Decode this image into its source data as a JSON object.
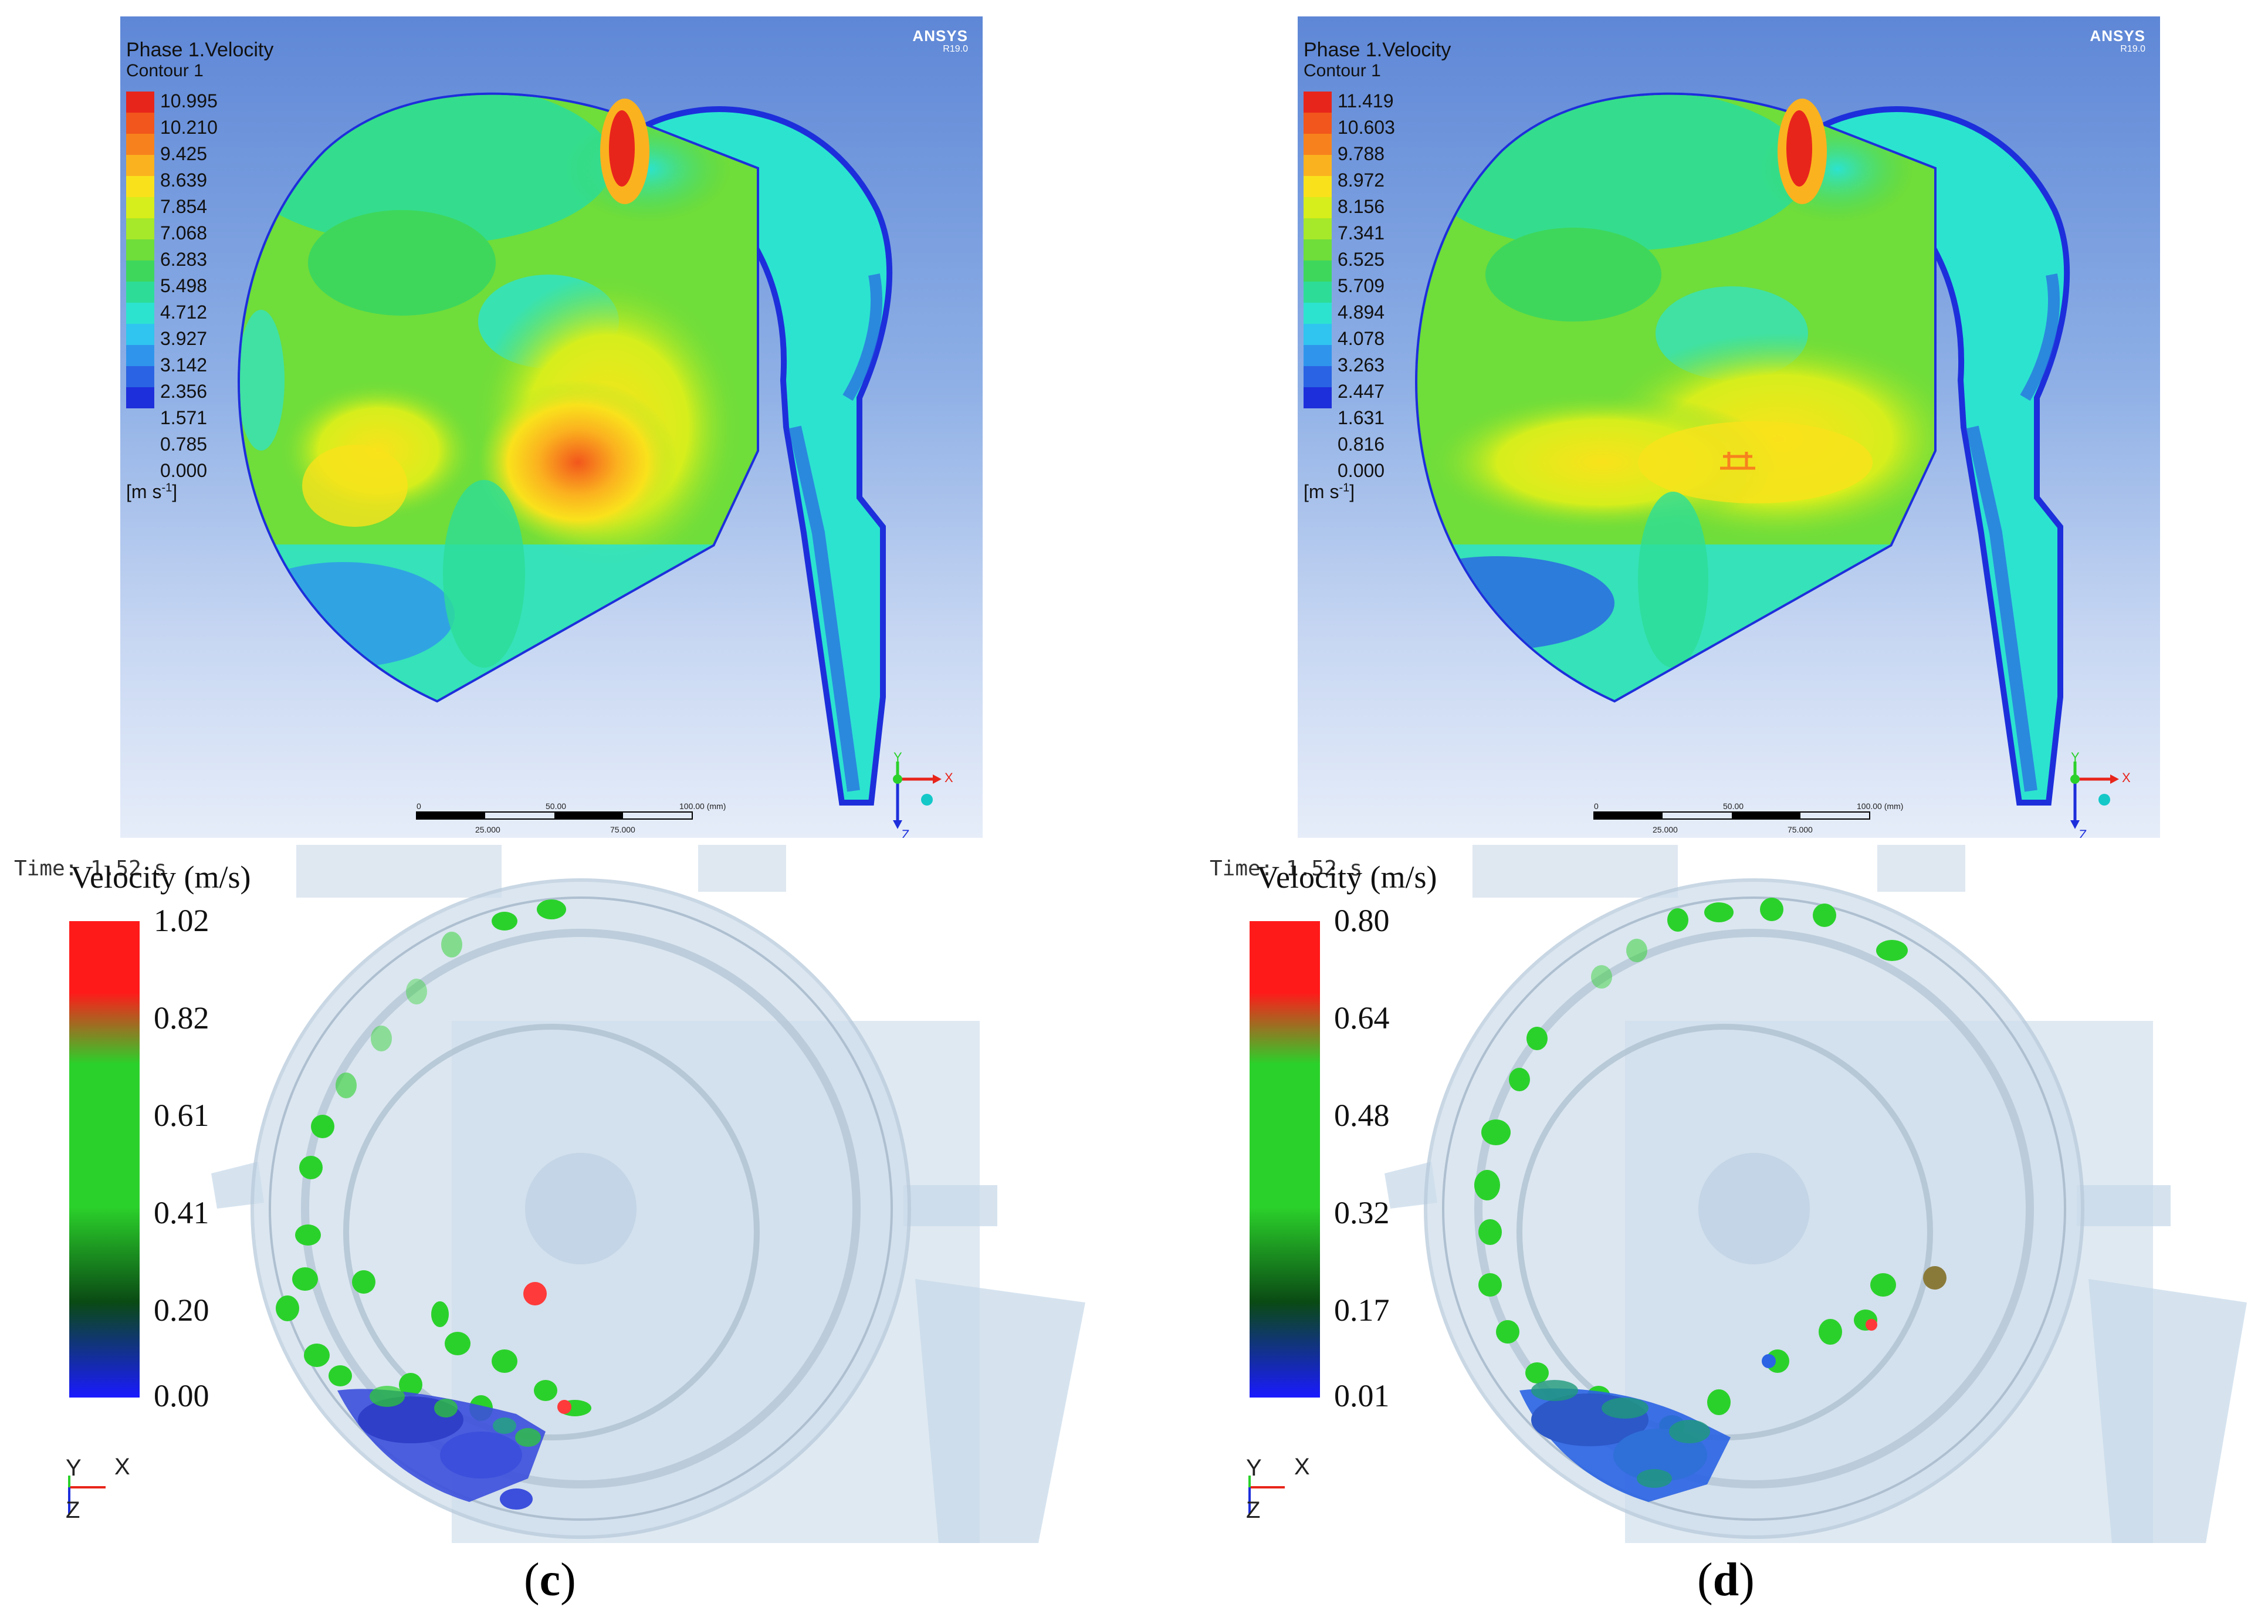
{
  "cfd": [
    {
      "title": "Phase 1.Velocity",
      "subtitle": "Contour 1",
      "legend_values": [
        "10.995",
        "10.210",
        "9.425",
        "8.639",
        "7.854",
        "7.068",
        "6.283",
        "5.498",
        "4.712",
        "3.927",
        "3.142",
        "2.356",
        "1.571",
        "0.785",
        "0.000"
      ],
      "unit": "[m s",
      "unit_exp": "-1",
      "unit_close": "]",
      "logo": "ANSYS",
      "version": "R19.0",
      "scale_labels": [
        "0",
        "50.00",
        "100.00  (mm)"
      ],
      "scale_sublabels": [
        "25.000",
        "75.000"
      ],
      "axis_x": "X",
      "axis_y": "Y",
      "axis_z": "Z"
    },
    {
      "title": "Phase 1.Velocity",
      "subtitle": "Contour 1",
      "legend_values": [
        "11.419",
        "10.603",
        "9.788",
        "8.972",
        "8.156",
        "7.341",
        "6.525",
        "5.709",
        "4.894",
        "4.078",
        "3.263",
        "2.447",
        "1.631",
        "0.816",
        "0.000"
      ],
      "unit": "[m s",
      "unit_exp": "-1",
      "unit_close": "]",
      "logo": "ANSYS",
      "version": "R19.0",
      "scale_labels": [
        "0",
        "50.00",
        "100.00  (mm)"
      ],
      "scale_sublabels": [
        "25.000",
        "75.000"
      ],
      "axis_x": "X",
      "axis_y": "Y",
      "axis_z": "Z"
    }
  ],
  "dem": [
    {
      "time": "Time: 1.52 s",
      "heading": "Velocity (m/s)",
      "ticks": [
        "1.02",
        "0.82",
        "0.61",
        "0.41",
        "0.20",
        "0.00"
      ],
      "caption_open": "(",
      "caption_letter": "c",
      "caption_close": ")",
      "axis_x": "X",
      "axis_y": "Y",
      "axis_z": "Z"
    },
    {
      "time": "Time: 1.52 s",
      "heading": "Velocity (m/s)",
      "ticks": [
        "0.80",
        "0.64",
        "0.48",
        "0.32",
        "0.17",
        "0.01"
      ],
      "caption_open": "(",
      "caption_letter": "d",
      "caption_close": ")",
      "axis_x": "X",
      "axis_y": "Y",
      "axis_z": "Z"
    }
  ],
  "colors": {
    "legend": [
      "#e8251b",
      "#f2561c",
      "#f7821d",
      "#fbb21f",
      "#f9e21c",
      "#d6ee1c",
      "#a6e82a",
      "#6fdd3a",
      "#3ed75c",
      "#2ddd97",
      "#2ce3d0",
      "#30c4f0",
      "#2f95ec",
      "#2a63e3",
      "#1d2fdb"
    ],
    "dem_gradient": [
      "#ff1a1a",
      "#2bd12b",
      "#0a4a14",
      "#1a1aff"
    ]
  }
}
